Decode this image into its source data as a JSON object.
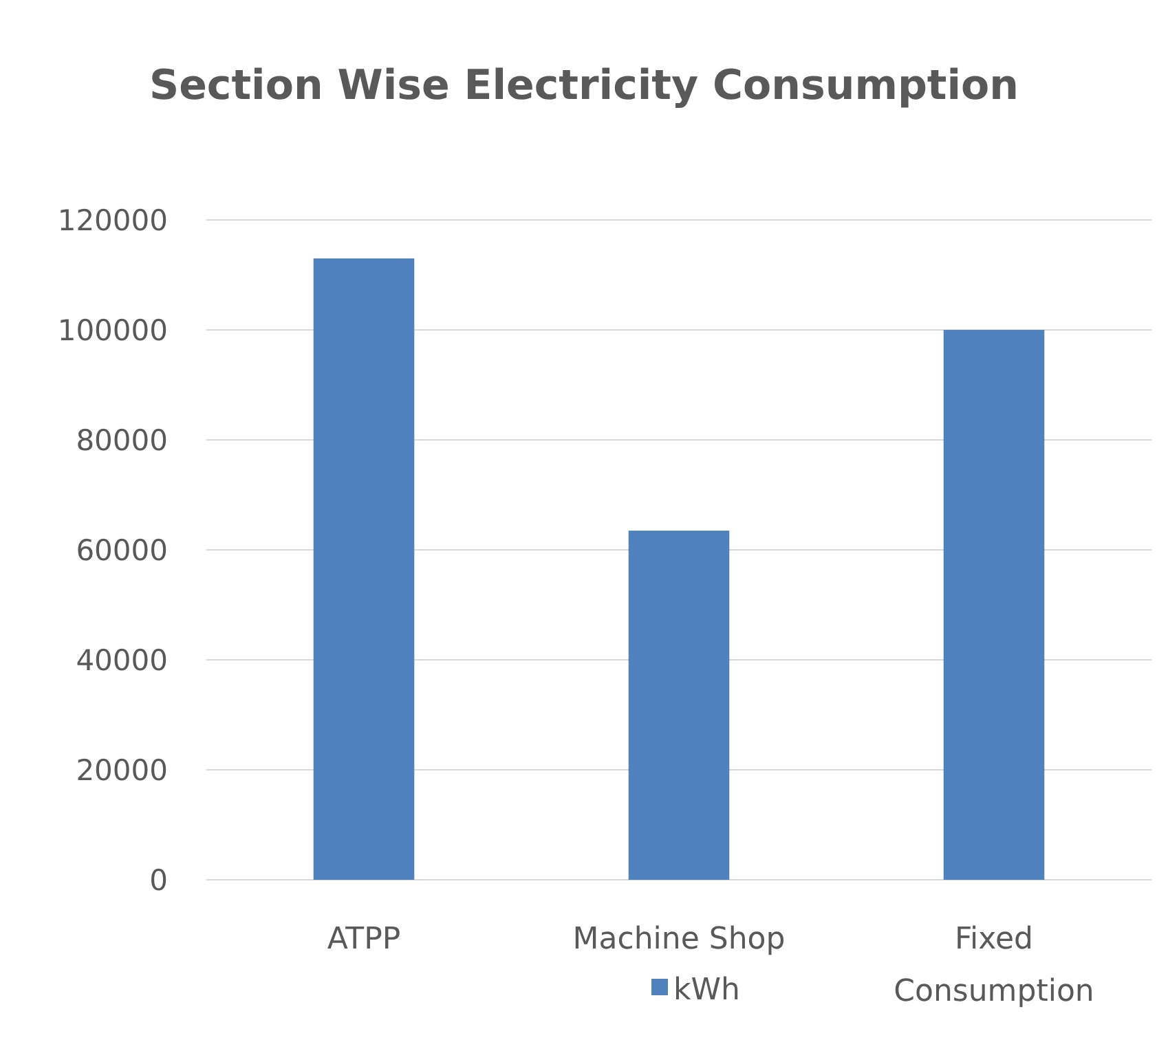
{
  "chart_data": {
    "type": "bar",
    "title": "Section Wise Electricity Consumption",
    "categories": [
      "ATPP",
      "Machine Shop",
      "Fixed Consumption"
    ],
    "series": [
      {
        "name": "kWh",
        "color": "#4f81bd",
        "values": [
          113000,
          63500,
          100000
        ]
      }
    ],
    "ylim": [
      0,
      120000
    ],
    "yticks": [
      0,
      20000,
      40000,
      60000,
      80000,
      100000,
      120000
    ],
    "grid": "y",
    "legend": "bottom"
  }
}
